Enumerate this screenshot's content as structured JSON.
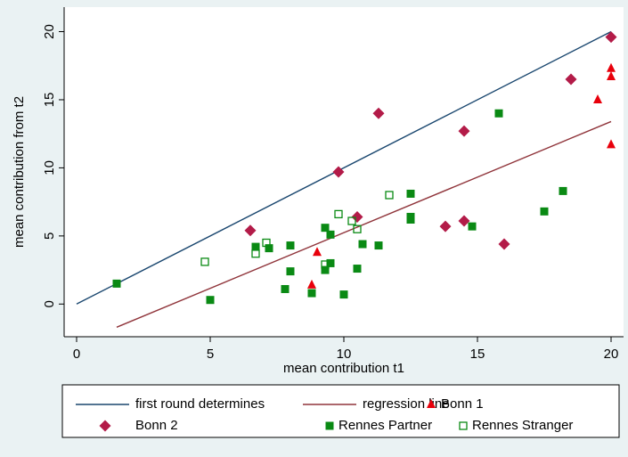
{
  "chart_data": {
    "type": "scatter",
    "x_label": "mean contribution t1",
    "y_label": "mean contribution from t2",
    "xlim": [
      -0.5,
      20.5
    ],
    "ylim": [
      -2.4,
      21.8
    ],
    "xticks": [
      0,
      5,
      10,
      15,
      20
    ],
    "yticks": [
      0,
      5,
      10,
      15,
      20
    ],
    "grid": false,
    "legend": "bottom",
    "series": [
      {
        "name": "first round determines",
        "type": "line",
        "color": "#1a476f",
        "x": [
          0,
          20
        ],
        "values": [
          0,
          20
        ]
      },
      {
        "name": "regression line",
        "type": "line",
        "color": "#90353b",
        "x": [
          1.5,
          20
        ],
        "values": [
          -1.7,
          13.4
        ]
      },
      {
        "name": "Bonn 1",
        "type": "scatter",
        "marker": "triangle",
        "color": "#e8000b",
        "x": [
          8.8,
          9,
          19.5,
          20,
          20,
          20
        ],
        "values": [
          1.4,
          3.8,
          15,
          17.3,
          16.7,
          11.7
        ]
      },
      {
        "name": "Bonn 2",
        "type": "scatter",
        "marker": "diamond",
        "color": "#b31b48",
        "x": [
          6.5,
          9.8,
          11.3,
          10.5,
          13.8,
          14.5,
          14.5,
          16,
          18.5,
          20
        ],
        "values": [
          5.4,
          9.7,
          14,
          6.4,
          5.7,
          12.7,
          6.1,
          4.4,
          16.5,
          19.6
        ]
      },
      {
        "name": "Rennes Partner",
        "type": "scatter",
        "marker": "square",
        "color": "#0a8a14",
        "x": [
          1.5,
          5,
          6.7,
          7.2,
          7.8,
          8,
          8,
          8.8,
          9.3,
          9.3,
          9.5,
          9.5,
          10,
          10.5,
          10.7,
          11.3,
          12.5,
          12.5,
          12.5,
          14.8,
          15.8,
          17.5,
          18.2
        ],
        "values": [
          1.5,
          0.3,
          4.2,
          4.1,
          1.1,
          4.3,
          2.4,
          0.8,
          5.6,
          2.5,
          5.1,
          3.0,
          0.7,
          2.6,
          4.4,
          4.3,
          6.4,
          6.2,
          8.1,
          5.7,
          14,
          6.8,
          8.3
        ]
      },
      {
        "name": "Rennes Stranger",
        "type": "scatter",
        "marker": "hollow-square",
        "color": "#0a8a14",
        "x": [
          4.8,
          6.7,
          7.1,
          9.3,
          9.8,
          10.3,
          10.5,
          11.7
        ],
        "values": [
          3.1,
          3.7,
          4.5,
          2.9,
          6.6,
          6.1,
          5.5,
          8.0
        ]
      }
    ]
  }
}
